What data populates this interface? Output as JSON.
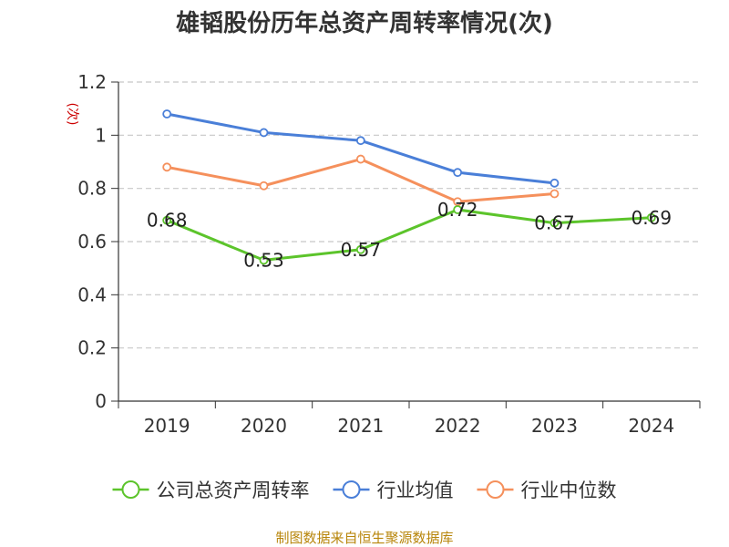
{
  "chart_data": {
    "type": "line",
    "title": "雄韬股份历年总资产周转率情况(次)",
    "ylabel": "(次)",
    "xlabel": "",
    "categories": [
      "2019",
      "2020",
      "2021",
      "2022",
      "2023",
      "2024"
    ],
    "ylim": [
      0,
      1.2
    ],
    "yticks": [
      0,
      0.2,
      0.4,
      0.6,
      0.8,
      1,
      1.2
    ],
    "ytick_labels": [
      "0",
      "0.2",
      "0.4",
      "0.6",
      "0.8",
      "1",
      "1.2"
    ],
    "grid": true,
    "legend_position": "bottom",
    "series": [
      {
        "name": "公司总资产周转率",
        "color": "#5cc42b",
        "values": [
          0.68,
          0.53,
          0.57,
          0.72,
          0.67,
          0.69
        ],
        "data_labels": [
          "0.68",
          "0.53",
          "0.57",
          "0.72",
          "0.67",
          "0.69"
        ]
      },
      {
        "name": "行业均值",
        "color": "#4a7fd8",
        "values": [
          1.08,
          1.01,
          0.98,
          0.86,
          0.82,
          null
        ]
      },
      {
        "name": "行业中位数",
        "color": "#f5905c",
        "values": [
          0.88,
          0.81,
          0.91,
          0.75,
          0.78,
          null
        ]
      }
    ],
    "source": "制图数据来自恒生聚源数据库"
  }
}
